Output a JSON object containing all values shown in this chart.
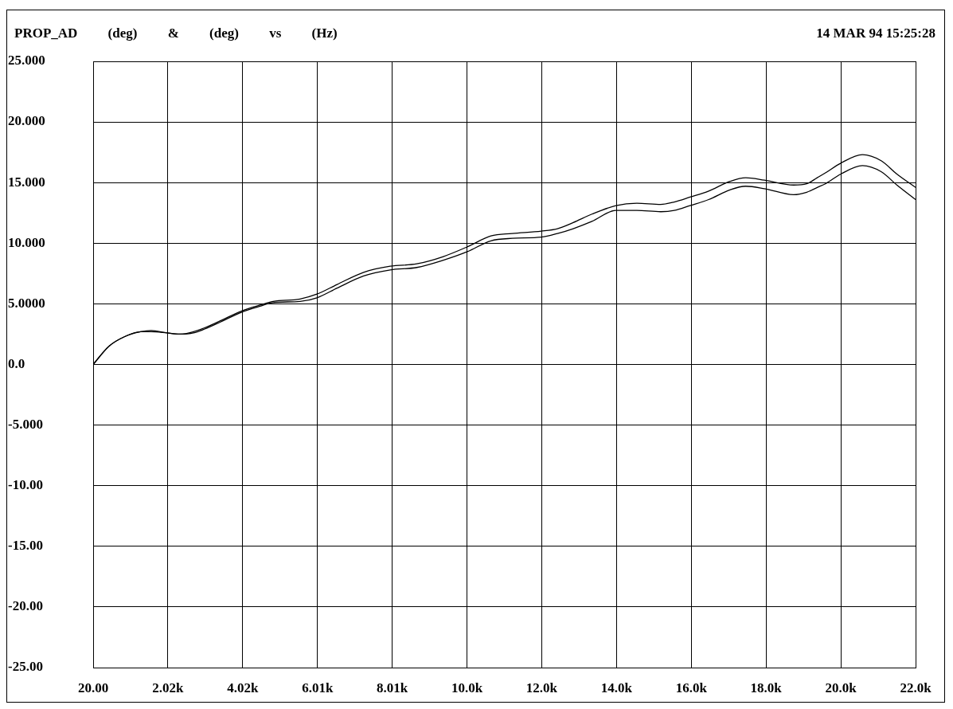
{
  "chart_data": {
    "type": "line",
    "title": "PROP_AD (deg) & (deg) vs (Hz)",
    "annotations": [
      "14 MAR 94 15:25:28"
    ],
    "x": [
      20,
      440,
      865,
      1290,
      1570,
      2000,
      2350,
      2700,
      3060,
      3420,
      3980,
      4480,
      4830,
      5550,
      6000,
      6540,
      7250,
      7960,
      8670,
      9380,
      10020,
      10650,
      11220,
      12000,
      12430,
      12850,
      13350,
      13990,
      14550,
      15190,
      15550,
      15970,
      16470,
      17040,
      17460,
      17960,
      18740,
      19090,
      19370,
      19590,
      20000,
      20580,
      21080,
      21500,
      22000
    ],
    "series": [
      {
        "color": "#000000",
        "values": [
          0,
          1.5,
          2.3,
          2.7,
          2.8,
          2.6,
          2.5,
          2.7,
          3.1,
          3.6,
          4.4,
          4.9,
          5.2,
          5.4,
          5.8,
          6.6,
          7.6,
          8.1,
          8.3,
          8.9,
          9.7,
          10.6,
          10.8,
          11.0,
          11.2,
          11.7,
          12.4,
          13.1,
          13.3,
          13.2,
          13.4,
          13.8,
          14.3,
          15.1,
          15.4,
          15.2,
          14.8,
          14.9,
          15.4,
          15.8,
          16.6,
          17.3,
          16.8,
          15.7,
          14.6
        ]
      },
      {
        "color": "#000000",
        "values": [
          0,
          1.5,
          2.3,
          2.7,
          2.7,
          2.6,
          2.5,
          2.6,
          3.0,
          3.5,
          4.3,
          4.8,
          5.1,
          5.2,
          5.5,
          6.3,
          7.3,
          7.8,
          8.0,
          8.6,
          9.3,
          10.2,
          10.4,
          10.5,
          10.8,
          11.2,
          11.8,
          12.7,
          12.7,
          12.6,
          12.7,
          13.1,
          13.6,
          14.4,
          14.7,
          14.5,
          14.0,
          14.2,
          14.6,
          14.9,
          15.7,
          16.4,
          15.9,
          14.8,
          13.6
        ]
      }
    ],
    "xlim": [
      20,
      22000
    ],
    "ylim": [
      -25,
      25
    ],
    "xticks": [
      {
        "value": 20,
        "label": "20.00"
      },
      {
        "value": 2018,
        "label": "2.02k"
      },
      {
        "value": 4016,
        "label": "4.02k"
      },
      {
        "value": 6015,
        "label": "6.01k"
      },
      {
        "value": 8013,
        "label": "8.01k"
      },
      {
        "value": 10011,
        "label": "10.0k"
      },
      {
        "value": 12009,
        "label": "12.0k"
      },
      {
        "value": 14007,
        "label": "14.0k"
      },
      {
        "value": 16005,
        "label": "16.0k"
      },
      {
        "value": 18004,
        "label": "18.0k"
      },
      {
        "value": 20002,
        "label": "20.0k"
      },
      {
        "value": 22000,
        "label": "22.0k"
      }
    ],
    "yticks": [
      {
        "value": -25,
        "label": "-25.00"
      },
      {
        "value": -20,
        "label": "-20.00"
      },
      {
        "value": -15,
        "label": "-15.00"
      },
      {
        "value": -10,
        "label": "-10.00"
      },
      {
        "value": -5,
        "label": "-5.000"
      },
      {
        "value": 0,
        "label": "0.0"
      },
      {
        "value": 5,
        "label": "5.0000"
      },
      {
        "value": 10,
        "label": "10.000"
      },
      {
        "value": 15,
        "label": "15.000"
      },
      {
        "value": 20,
        "label": "20.000"
      },
      {
        "value": 25,
        "label": "25.000"
      }
    ],
    "grid": true,
    "marker": "none",
    "line_style": "solid"
  }
}
